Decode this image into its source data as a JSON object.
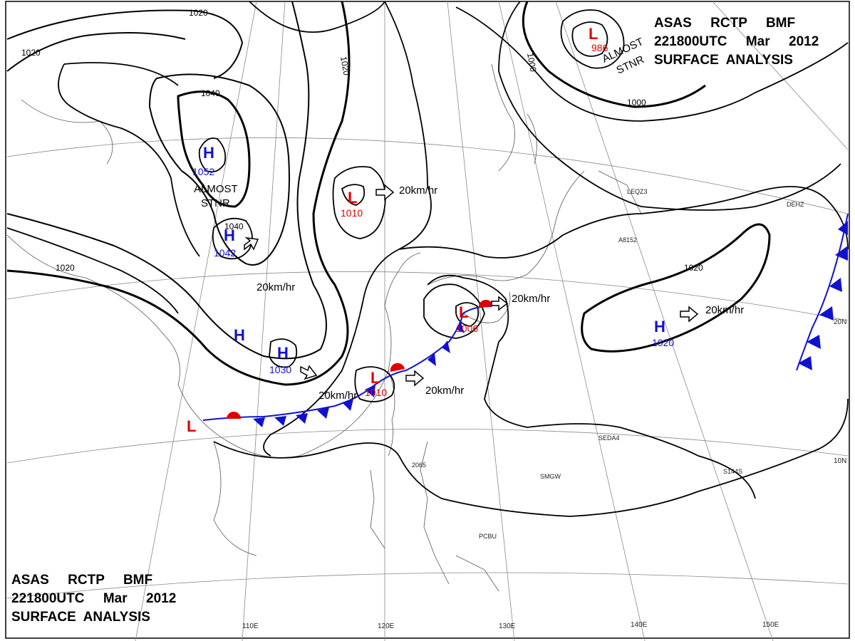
{
  "header": {
    "top_right": [
      "ASAS     RCTP     BMF",
      "221800UTC     Mar     2012",
      "SURFACE  ANALYSIS"
    ],
    "bottom_left": [
      "ASAS     RCTP     BMF",
      "221800UTC     Mar     2012",
      "SURFACE  ANALYSIS"
    ]
  },
  "longitude_labels": [
    "110E",
    "120E",
    "130E",
    "140E",
    "150E"
  ],
  "latitude_labels": [
    "20N",
    "10N"
  ],
  "isobar_labels": [
    "1020",
    "1020",
    "1020",
    "1040",
    "1040",
    "1020",
    "1000",
    "1000",
    "1020"
  ],
  "highs": [
    {
      "label": "H",
      "value": "1052"
    },
    {
      "label": "H",
      "value": "1042"
    },
    {
      "label": "H",
      "value": ""
    },
    {
      "label": "H",
      "value": "1030"
    },
    {
      "label": "H",
      "value": "1020"
    }
  ],
  "lows": [
    {
      "label": "L",
      "value": "986"
    },
    {
      "label": "L",
      "value": "1010"
    },
    {
      "label": "L",
      "value": "1006"
    },
    {
      "label": "L",
      "value": "1010"
    },
    {
      "label": "L",
      "value": ""
    }
  ],
  "motion_labels": [
    "20km/hr",
    "20km/hr",
    "20km/hr",
    "20km/hr",
    "20km/hr",
    "20km/hr"
  ],
  "notes": [
    {
      "lines": [
        "ALMOST",
        "STNR"
      ]
    },
    {
      "lines": [
        "ALMOST",
        "STNR"
      ]
    }
  ],
  "stations": [
    "LEQZ3",
    "DEHZ",
    "SEDA4",
    "SMGW",
    "PCBU",
    "S144S",
    "A8152",
    "2065"
  ],
  "colors": {
    "high": "#1010d0",
    "low": "#e00000",
    "front_cold": "#1010d0",
    "front_warm": "#e00000",
    "isobar": "#000000",
    "coast": "#555555"
  }
}
